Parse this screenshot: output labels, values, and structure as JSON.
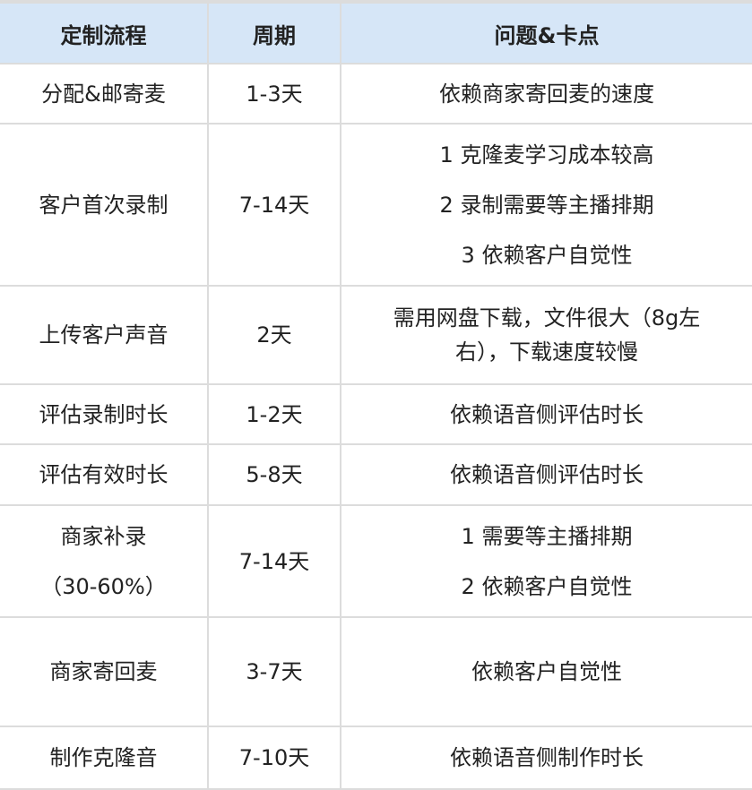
{
  "header": {
    "col1": "定制流程",
    "col2": "周期",
    "col3": "问题&卡点"
  },
  "rows": [
    {
      "stage": [
        "分配&邮寄麦"
      ],
      "period": "1-3天",
      "issues": [
        "依赖商家寄回麦的速度"
      ]
    },
    {
      "stage": [
        "客户首次录制"
      ],
      "period": "7-14天",
      "issues": [
        "1 克隆麦学习成本较高",
        "2 录制需要等主播排期",
        "3 依赖客户自觉性"
      ]
    },
    {
      "stage": [
        "上传客户声音"
      ],
      "period": "2天",
      "issues": [
        "需用网盘下载，文件很大（8g左右），下载速度较慢"
      ]
    },
    {
      "stage": [
        "评估录制时长"
      ],
      "period": "1-2天",
      "issues": [
        "依赖语音侧评估时长"
      ]
    },
    {
      "stage": [
        "评估有效时长"
      ],
      "period": "5-8天",
      "issues": [
        "依赖语音侧评估时长"
      ]
    },
    {
      "stage": [
        "商家补录",
        "（30-60%）"
      ],
      "period": "7-14天",
      "issues": [
        "1 需要等主播排期",
        "2 依赖客户自觉性"
      ]
    },
    {
      "stage": [
        "商家寄回麦"
      ],
      "period": "3-7天",
      "issues": [
        "依赖客户自觉性"
      ]
    },
    {
      "stage": [
        "制作克隆音"
      ],
      "period": "7-10天",
      "issues": [
        "依赖语音侧制作时长"
      ]
    }
  ]
}
